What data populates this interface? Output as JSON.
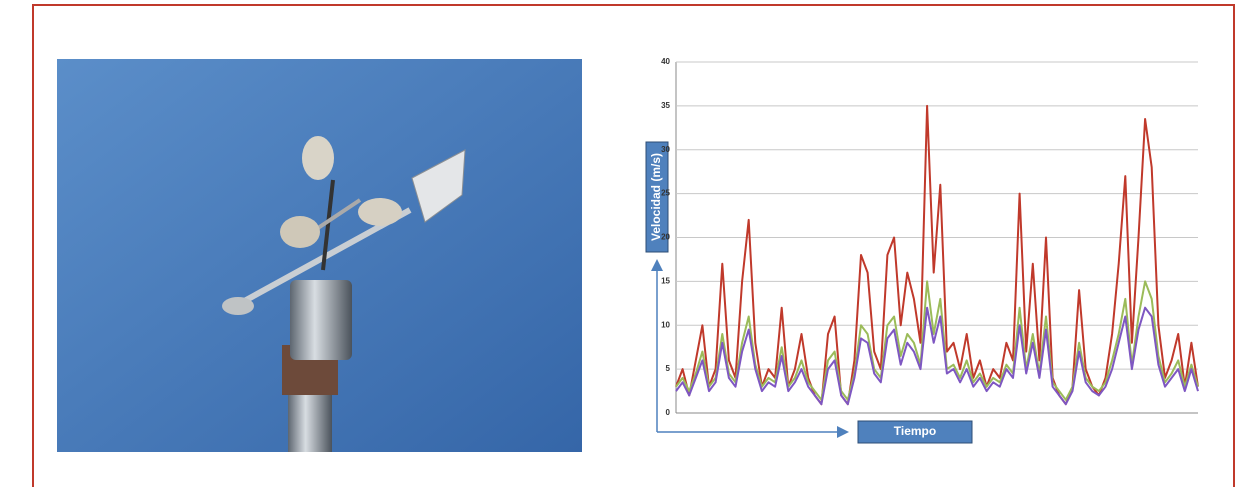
{
  "chart_data": {
    "type": "line",
    "y_label": "Velocidad (m/s)",
    "x_label": "Tiempo",
    "ylim": [
      0,
      40
    ],
    "yticks": [
      0,
      5,
      10,
      15,
      20,
      25,
      30,
      35,
      40
    ],
    "grid": true,
    "series": [
      {
        "color": "#c0392b",
        "values": [
          3,
          5,
          2,
          6,
          10,
          3,
          5,
          17,
          6,
          4,
          15,
          22,
          8,
          3,
          5,
          4,
          12,
          3,
          5,
          9,
          4,
          2,
          1,
          9,
          11,
          2,
          1,
          6,
          18,
          16,
          7,
          5,
          18,
          20,
          10,
          16,
          13,
          8,
          35,
          16,
          26,
          7,
          8,
          5,
          9,
          4,
          6,
          3,
          5,
          4,
          8,
          6,
          25,
          7,
          17,
          6,
          20,
          4,
          2,
          1,
          3,
          14,
          5,
          3,
          2,
          4,
          9,
          17,
          27,
          8,
          20,
          33.5,
          28,
          10,
          4,
          6,
          9,
          3,
          8,
          3
        ]
      },
      {
        "color": "#9bbb59",
        "values": [
          3,
          4,
          2.5,
          4.5,
          7,
          3,
          4,
          9,
          4.5,
          3.5,
          8,
          11,
          5.5,
          3,
          4,
          3.5,
          7.5,
          3,
          4,
          6,
          3.5,
          2.5,
          1.5,
          6,
          7,
          2.5,
          1.5,
          4.5,
          10,
          9,
          5,
          4,
          10,
          11,
          6.5,
          9,
          8,
          5.5,
          15,
          9,
          13,
          5,
          5.5,
          4,
          6,
          3.5,
          4.5,
          3,
          4,
          3.5,
          5.5,
          4.5,
          12,
          5,
          9,
          4.5,
          11,
          3.5,
          2.5,
          1.5,
          3,
          8,
          4,
          3,
          2.5,
          3.5,
          6,
          9,
          13,
          5.5,
          11,
          15,
          13,
          6.5,
          3.5,
          4.5,
          6,
          3,
          5.5,
          3
        ]
      },
      {
        "color": "#7e57c2",
        "values": [
          2.5,
          3.5,
          2,
          4,
          6,
          2.5,
          3.5,
          8,
          4,
          3,
          7,
          9.5,
          5,
          2.5,
          3.5,
          3,
          6.5,
          2.5,
          3.5,
          5,
          3,
          2,
          1,
          5,
          6,
          2,
          1,
          4,
          8.5,
          8,
          4.5,
          3.5,
          8.5,
          9.5,
          5.5,
          8,
          7,
          5,
          12,
          8,
          11,
          4.5,
          5,
          3.5,
          5,
          3,
          4,
          2.5,
          3.5,
          3,
          5,
          4,
          10,
          4.5,
          8,
          4,
          9.5,
          3,
          2,
          1,
          2.5,
          7,
          3.5,
          2.5,
          2,
          3,
          5,
          8,
          11,
          5,
          9.5,
          12,
          11,
          5.5,
          3,
          4,
          5,
          2.5,
          5,
          2.5
        ]
      }
    ]
  }
}
